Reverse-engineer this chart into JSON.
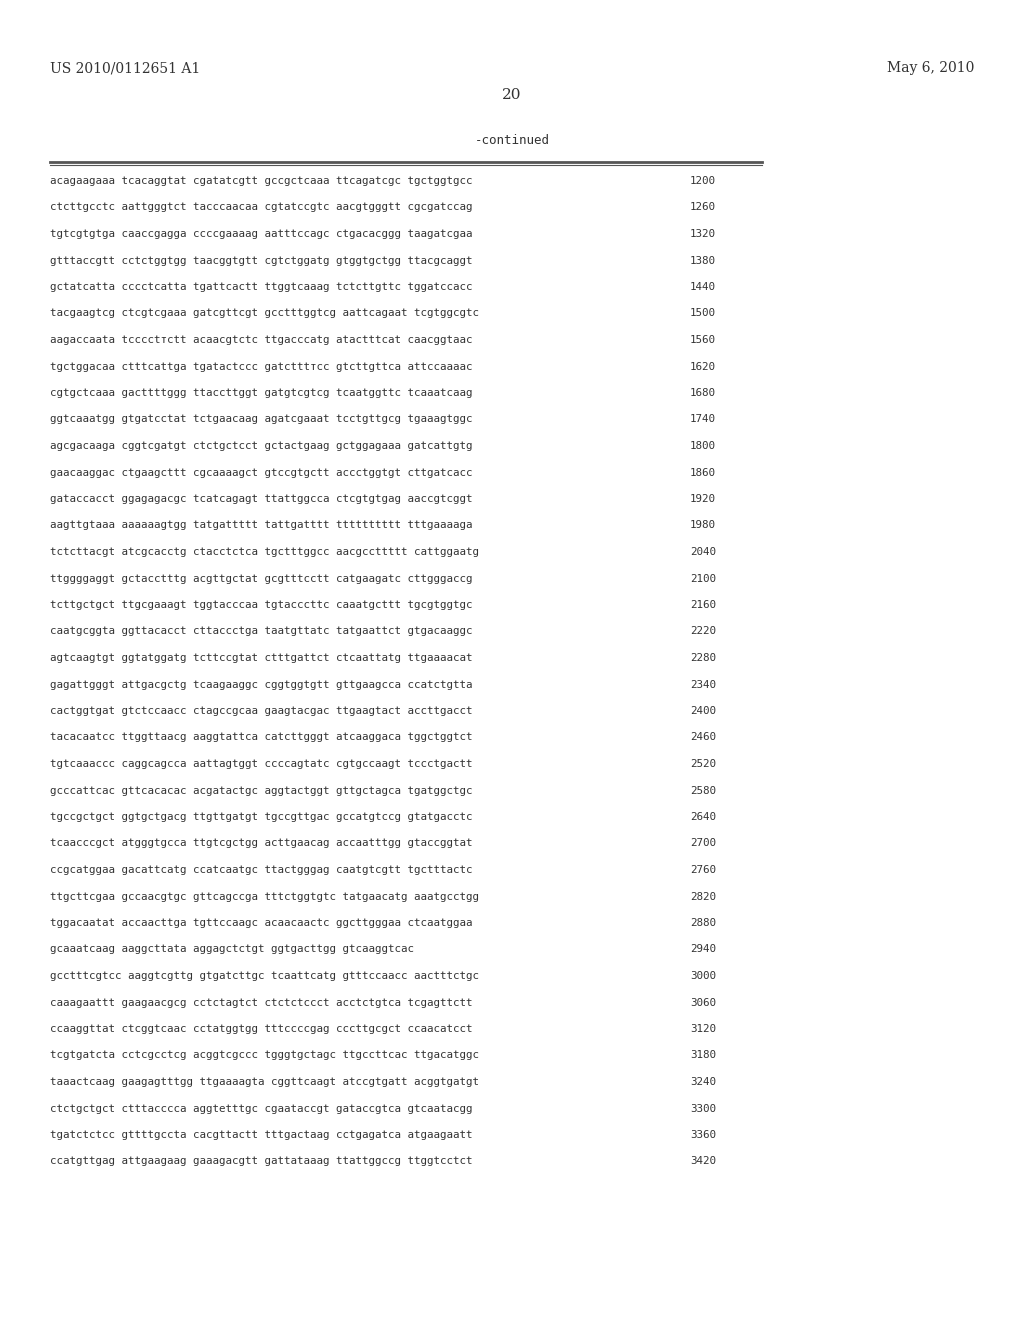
{
  "header_left": "US 2010/0112651 A1",
  "header_right": "May 6, 2010",
  "page_number": "20",
  "continued_label": "-continued",
  "sequences": [
    [
      "acagaagaaa tcacaggtat cgatatcgtt gccgctcaaa ttcagatcgc tgctggtgcc",
      "1200"
    ],
    [
      "ctcttgcctc aattgggtct tacccaacaa cgtatccgtc aacgtgggtt cgcgatccag",
      "1260"
    ],
    [
      "tgtcgtgtga caaccgagga ccccgaaaag aatttccagc ctgacacggg taagatcgaa",
      "1320"
    ],
    [
      "gtttaccgtt cctctggtgg taacggtgtt cgtctggatg gtggtgctgg ttacgcaggt",
      "1380"
    ],
    [
      "gctatcatta cccctcatta tgattcactt ttggtcaaag tctcttgttc tggatccacc",
      "1440"
    ],
    [
      "tacgaagtcg ctcgtcgaaa gatcgttcgt gcctttggtcg aattcagaat tcgtggcgtc",
      "1500"
    ],
    [
      "aagaccaata tcccctтctt acaacgtctc ttgacccatg atactttcat caacggtaac",
      "1560"
    ],
    [
      "tgctggacaa ctttcattga tgatactccc gatctttтcc gtcttgttca attccaaaac",
      "1620"
    ],
    [
      "cgtgctcaaa gacttttggg ttaccttggt gatgtcgtcg tcaatggttc tcaaatcaag",
      "1680"
    ],
    [
      "ggtcaaatgg gtgatcctat tctgaacaag agatcgaaat tcctgttgcg tgaaagtggc",
      "1740"
    ],
    [
      "agcgacaaga cggtcgatgt ctctgctcct gctactgaag gctggagaaa gatcattgtg",
      "1800"
    ],
    [
      "gaacaaggac ctgaagcttt cgcaaaagct gtccgtgctt accctggtgt cttgatcacc",
      "1860"
    ],
    [
      "gataccacct ggagagacgc tcatcagagt ttattggcca ctcgtgtgag aaccgtcggt",
      "1920"
    ],
    [
      "aagttgtaaa aaaaaagtgg tatgattttt tattgatttt tttttttttt tttgaaaaga",
      "1980"
    ],
    [
      "tctcttacgt atcgcacctg ctacctctca tgctttggcc aacgccttttt cattggaatg",
      "2040"
    ],
    [
      "ttggggaggt gctacctttg acgttgctat gcgtttcctt catgaagatc cttgggaccg",
      "2100"
    ],
    [
      "tcttgctgct ttgcgaaagt tggtacccaa tgtacccttc caaatgcttt tgcgtggtgc",
      "2160"
    ],
    [
      "caatgcggta ggttacacct cttaccctga taatgttatc tatgaattct gtgacaaggc",
      "2220"
    ],
    [
      "agtcaagtgt ggtatggatg tcttccgtat ctttgattct ctcaattatg ttgaaaacat",
      "2280"
    ],
    [
      "gagattgggt attgacgctg tcaagaaggc cggtggtgtt gttgaagcca ccatctgtta",
      "2340"
    ],
    [
      "cactggtgat gtctccaacc ctagccgcaa gaagtacgac ttgaagtact accttgacct",
      "2400"
    ],
    [
      "tacacaatcc ttggttaacg aaggtattca catcttgggt atcaaggaca tggctggtct",
      "2460"
    ],
    [
      "tgtcaaaccc caggcagcca aattagtggt ccccagtatc cgtgccaagt tccctgactt",
      "2520"
    ],
    [
      "gcccattcac gttcacacac acgatactgc aggtactggt gttgctagca tgatggctgc",
      "2580"
    ],
    [
      "tgccgctgct ggtgctgacg ttgttgatgt tgccgttgac gccatgtccg gtatgacctc",
      "2640"
    ],
    [
      "tcaacccgct atgggtgcca ttgtcgctgg acttgaacag accaatttgg gtaccggtat",
      "2700"
    ],
    [
      "ccgcatggaa gacattcatg ccatcaatgc ttactgggag caatgtcgtt tgctttactc",
      "2760"
    ],
    [
      "ttgcttcgaa gccaacgtgc gttcagccga tttctggtgtc tatgaacatg aaatgcctgg",
      "2820"
    ],
    [
      "tggacaatat accaacttga tgttccaagc acaacaactc ggcttgggaa ctcaatggaa",
      "2880"
    ],
    [
      "gcaaatcaag aaggcttata aggagctctgt ggtgacttgg gtcaaggtcac",
      "2940"
    ],
    [
      "gcctttcgtcc aaggtcgttg gtgatcttgc tcaattcatg gtttccaacc aactttctgc",
      "3000"
    ],
    [
      "caaagaattt gaagaacgcg cctctagtct ctctctccct acctctgtca tcgagttctt",
      "3060"
    ],
    [
      "ccaaggttat ctcggtcaac cctatggtgg tttccccgag cccttgcgct ccaacatcct",
      "3120"
    ],
    [
      "tcgtgatcta cctcgcctcg acggtcgccc tgggtgctagc ttgccttcac ttgacatggc",
      "3180"
    ],
    [
      "taaactcaag gaagagtttgg ttgaaaagta cggttcaagt atccgtgatt acggtgatgt",
      "3240"
    ],
    [
      "ctctgctgct ctttacccca aggtetttgc cgaataccgt gataccgtca gtcaatacgg",
      "3300"
    ],
    [
      "tgatctctcc gttttgccta cacgttactt tttgactaag cctgagatca atgaagaatt",
      "3360"
    ],
    [
      "ccatgttgag attgaagaag gaaagacgtt gattataaag ttattggccg ttggtcctct",
      "3420"
    ]
  ]
}
